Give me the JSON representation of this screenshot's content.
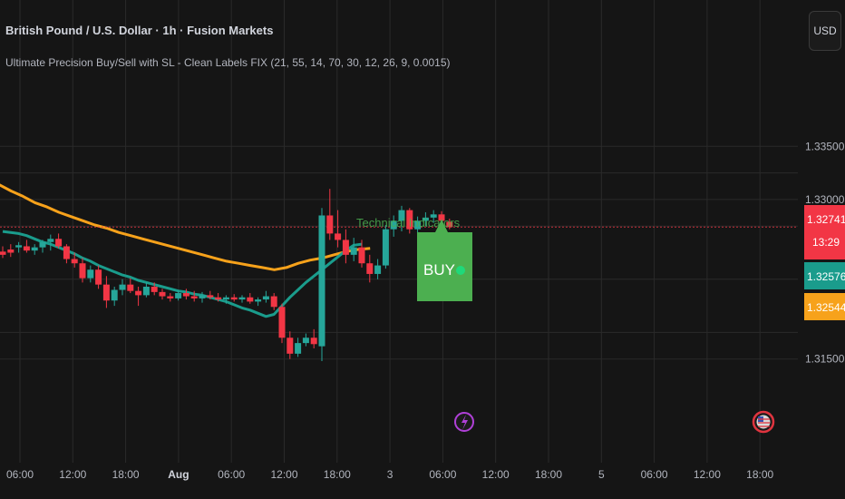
{
  "header": {
    "symbol_title": "British Pound / U.S. Dollar · 1h · Fusion Markets",
    "indicator_title": "Ultimate Precision Buy/Sell with SL - Clean Labels FIX (21, 55, 14, 70, 30, 12, 26, 9, 0.0015)",
    "currency_button": "USD"
  },
  "colors": {
    "background": "#151515",
    "grid": "#2a2a2a",
    "up": "#26a69a",
    "down": "#f23645",
    "ema_fast": "#1a9c8c",
    "ema_slow": "#f7a21b",
    "buy_label": "#4caf50",
    "annotation": "#4caf50"
  },
  "chart_data": {
    "type": "candlestick",
    "instrument": "British Pound / U.S. Dollar",
    "timeframe": "1h",
    "y_ticks": [
      "1.33500",
      "1.33000",
      "1.31500"
    ],
    "ylim": [
      1.3125,
      1.3375
    ],
    "x_ticks": [
      "06:00",
      "12:00",
      "18:00",
      "Aug",
      "06:00",
      "12:00",
      "18:00",
      "3",
      "06:00",
      "12:00",
      "18:00",
      "5",
      "06:00",
      "12:00",
      "18:00"
    ],
    "candles": [
      {
        "o": 1.3251,
        "h": 1.3256,
        "l": 1.3245,
        "c": 1.3248
      },
      {
        "o": 1.3253,
        "h": 1.3258,
        "l": 1.3246,
        "c": 1.325
      },
      {
        "o": 1.3255,
        "h": 1.326,
        "l": 1.325,
        "c": 1.3257
      },
      {
        "o": 1.3256,
        "h": 1.3262,
        "l": 1.325,
        "c": 1.3252
      },
      {
        "o": 1.3252,
        "h": 1.3258,
        "l": 1.3248,
        "c": 1.3255
      },
      {
        "o": 1.3255,
        "h": 1.3262,
        "l": 1.325,
        "c": 1.326
      },
      {
        "o": 1.326,
        "h": 1.3267,
        "l": 1.3252,
        "c": 1.3263
      },
      {
        "o": 1.3263,
        "h": 1.3268,
        "l": 1.3254,
        "c": 1.3256
      },
      {
        "o": 1.3256,
        "h": 1.3258,
        "l": 1.324,
        "c": 1.3244
      },
      {
        "o": 1.3244,
        "h": 1.325,
        "l": 1.3236,
        "c": 1.324
      },
      {
        "o": 1.324,
        "h": 1.3245,
        "l": 1.3222,
        "c": 1.3226
      },
      {
        "o": 1.3226,
        "h": 1.3238,
        "l": 1.3222,
        "c": 1.3234
      },
      {
        "o": 1.3234,
        "h": 1.3238,
        "l": 1.3216,
        "c": 1.322
      },
      {
        "o": 1.322,
        "h": 1.3228,
        "l": 1.3198,
        "c": 1.3205
      },
      {
        "o": 1.3205,
        "h": 1.3218,
        "l": 1.32,
        "c": 1.3215
      },
      {
        "o": 1.3215,
        "h": 1.3225,
        "l": 1.321,
        "c": 1.322
      },
      {
        "o": 1.322,
        "h": 1.3226,
        "l": 1.3212,
        "c": 1.3214
      },
      {
        "o": 1.3214,
        "h": 1.3218,
        "l": 1.32,
        "c": 1.321
      },
      {
        "o": 1.321,
        "h": 1.3222,
        "l": 1.3208,
        "c": 1.3218
      },
      {
        "o": 1.3218,
        "h": 1.3222,
        "l": 1.321,
        "c": 1.3213
      },
      {
        "o": 1.3213,
        "h": 1.3216,
        "l": 1.3206,
        "c": 1.3209
      },
      {
        "o": 1.3209,
        "h": 1.3212,
        "l": 1.3204,
        "c": 1.3207
      },
      {
        "o": 1.3207,
        "h": 1.3215,
        "l": 1.3205,
        "c": 1.3212
      },
      {
        "o": 1.3212,
        "h": 1.3216,
        "l": 1.3206,
        "c": 1.3209
      },
      {
        "o": 1.3209,
        "h": 1.3214,
        "l": 1.3204,
        "c": 1.3207
      },
      {
        "o": 1.3207,
        "h": 1.3213,
        "l": 1.3203,
        "c": 1.321
      },
      {
        "o": 1.321,
        "h": 1.3214,
        "l": 1.3206,
        "c": 1.3208
      },
      {
        "o": 1.3208,
        "h": 1.3212,
        "l": 1.3204,
        "c": 1.3206
      },
      {
        "o": 1.3206,
        "h": 1.321,
        "l": 1.3202,
        "c": 1.3208
      },
      {
        "o": 1.3208,
        "h": 1.3211,
        "l": 1.3204,
        "c": 1.3206
      },
      {
        "o": 1.3206,
        "h": 1.321,
        "l": 1.3203,
        "c": 1.3208
      },
      {
        "o": 1.3208,
        "h": 1.3212,
        "l": 1.3202,
        "c": 1.3204
      },
      {
        "o": 1.3204,
        "h": 1.3208,
        "l": 1.32,
        "c": 1.3206
      },
      {
        "o": 1.3206,
        "h": 1.3214,
        "l": 1.3203,
        "c": 1.3209
      },
      {
        "o": 1.3209,
        "h": 1.3212,
        "l": 1.3196,
        "c": 1.3199
      },
      {
        "o": 1.3199,
        "h": 1.3202,
        "l": 1.3165,
        "c": 1.317
      },
      {
        "o": 1.317,
        "h": 1.3176,
        "l": 1.315,
        "c": 1.3155
      },
      {
        "o": 1.3155,
        "h": 1.317,
        "l": 1.3152,
        "c": 1.3165
      },
      {
        "o": 1.3165,
        "h": 1.3174,
        "l": 1.3162,
        "c": 1.317
      },
      {
        "o": 1.317,
        "h": 1.3178,
        "l": 1.316,
        "c": 1.3164
      },
      {
        "o": 1.3162,
        "h": 1.3292,
        "l": 1.3148,
        "c": 1.3285
      },
      {
        "o": 1.3285,
        "h": 1.331,
        "l": 1.3262,
        "c": 1.3268
      },
      {
        "o": 1.3268,
        "h": 1.329,
        "l": 1.3255,
        "c": 1.3262
      },
      {
        "o": 1.3262,
        "h": 1.3272,
        "l": 1.324,
        "c": 1.3248
      },
      {
        "o": 1.3248,
        "h": 1.3264,
        "l": 1.3242,
        "c": 1.3255
      },
      {
        "o": 1.3255,
        "h": 1.3262,
        "l": 1.3236,
        "c": 1.324
      },
      {
        "o": 1.324,
        "h": 1.3248,
        "l": 1.3222,
        "c": 1.323
      },
      {
        "o": 1.323,
        "h": 1.3244,
        "l": 1.3225,
        "c": 1.3238
      },
      {
        "o": 1.3238,
        "h": 1.3276,
        "l": 1.3235,
        "c": 1.3272
      },
      {
        "o": 1.3272,
        "h": 1.3285,
        "l": 1.3265,
        "c": 1.328
      },
      {
        "o": 1.328,
        "h": 1.3294,
        "l": 1.327,
        "c": 1.329
      },
      {
        "o": 1.329,
        "h": 1.3292,
        "l": 1.3268,
        "c": 1.3272
      },
      {
        "o": 1.3272,
        "h": 1.3284,
        "l": 1.3268,
        "c": 1.328
      },
      {
        "o": 1.328,
        "h": 1.3288,
        "l": 1.3275,
        "c": 1.3283
      },
      {
        "o": 1.3283,
        "h": 1.329,
        "l": 1.3278,
        "c": 1.3286
      },
      {
        "o": 1.3286,
        "h": 1.3289,
        "l": 1.3278,
        "c": 1.328
      },
      {
        "o": 1.3279,
        "h": 1.3282,
        "l": 1.3272,
        "c": 1.3274
      }
    ],
    "series": [
      {
        "values": [
          1.327,
          1.3269,
          1.3268,
          1.3266,
          1.3263,
          1.326,
          1.3258,
          1.3255,
          1.3252,
          1.3249,
          1.3245,
          1.3242,
          1.3238,
          1.3235,
          1.3232,
          1.3229,
          1.3227,
          1.3224,
          1.3222,
          1.322,
          1.3218,
          1.3216,
          1.3214,
          1.3213,
          1.3211,
          1.321,
          1.3208,
          1.3206,
          1.3204,
          1.3201,
          1.3198,
          1.3196,
          1.3193,
          1.319,
          1.3192,
          1.32,
          1.3208,
          1.3215,
          1.3222,
          1.3228,
          1.3234,
          1.324,
          1.3246,
          1.3252,
          1.3257,
          1.3258
        ]
      },
      {
        "values": [
          1.3314,
          1.3308,
          1.3303,
          1.3297,
          1.3293,
          1.3288,
          1.3284,
          1.328,
          1.3276,
          1.3273,
          1.3269,
          1.3266,
          1.3263,
          1.326,
          1.3257,
          1.3254,
          1.3251,
          1.3248,
          1.3245,
          1.3242,
          1.324,
          1.3238,
          1.3236,
          1.3234,
          1.3236,
          1.324,
          1.3243,
          1.3245,
          1.3248,
          1.3251,
          1.3253,
          1.3254
        ]
      }
    ],
    "price_labels": [
      {
        "value": "1.32741",
        "sub": "13:29",
        "color": "#f23645"
      },
      {
        "value": "1.32576",
        "color": "#1a9c8c"
      },
      {
        "value": "1.32544",
        "color": "#f7a21b"
      }
    ],
    "annotations": {
      "technical_text": "Technical Indicators",
      "buy_label": "BUY"
    }
  }
}
